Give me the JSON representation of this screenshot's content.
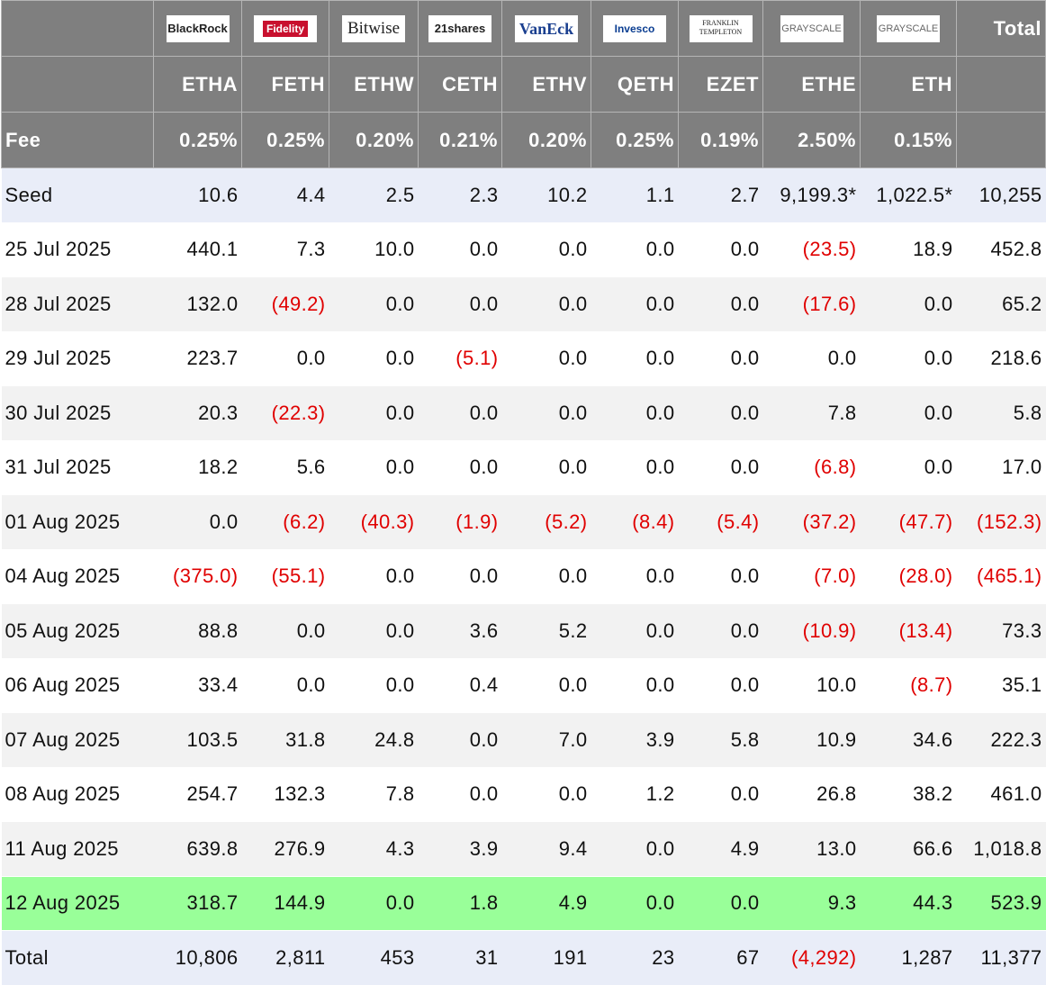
{
  "header": {
    "logos": [
      "BlackRock",
      "Fidelity",
      "Bitwise",
      "21shares",
      "VanEck",
      "Invesco",
      "FRANKLIN TEMPLETON",
      "GRAYSCALE",
      "GRAYSCALE"
    ],
    "total_label": "Total",
    "tickers": [
      "ETHA",
      "FETH",
      "ETHW",
      "CETH",
      "ETHV",
      "QETH",
      "EZET",
      "ETHE",
      "ETH"
    ],
    "fee_label": "Fee",
    "fees": [
      "0.25%",
      "0.25%",
      "0.20%",
      "0.21%",
      "0.20%",
      "0.25%",
      "0.19%",
      "2.50%",
      "0.15%"
    ]
  },
  "table": {
    "rows": [
      [
        "Seed",
        "10.6",
        "4.4",
        "2.5",
        "2.3",
        "10.2",
        "1.1",
        "2.7",
        "9,199.3*",
        "1,022.5*",
        "10,255"
      ],
      [
        "25 Jul 2025",
        "440.1",
        "7.3",
        "10.0",
        "0.0",
        "0.0",
        "0.0",
        "0.0",
        "(23.5)",
        "18.9",
        "452.8"
      ],
      [
        "28 Jul 2025",
        "132.0",
        "(49.2)",
        "0.0",
        "0.0",
        "0.0",
        "0.0",
        "0.0",
        "(17.6)",
        "0.0",
        "65.2"
      ],
      [
        "29 Jul 2025",
        "223.7",
        "0.0",
        "0.0",
        "(5.1)",
        "0.0",
        "0.0",
        "0.0",
        "0.0",
        "0.0",
        "218.6"
      ],
      [
        "30 Jul 2025",
        "20.3",
        "(22.3)",
        "0.0",
        "0.0",
        "0.0",
        "0.0",
        "0.0",
        "7.8",
        "0.0",
        "5.8"
      ],
      [
        "31 Jul 2025",
        "18.2",
        "5.6",
        "0.0",
        "0.0",
        "0.0",
        "0.0",
        "0.0",
        "(6.8)",
        "0.0",
        "17.0"
      ],
      [
        "01 Aug 2025",
        "0.0",
        "(6.2)",
        "(40.3)",
        "(1.9)",
        "(5.2)",
        "(8.4)",
        "(5.4)",
        "(37.2)",
        "(47.7)",
        "(152.3)"
      ],
      [
        "04 Aug 2025",
        "(375.0)",
        "(55.1)",
        "0.0",
        "0.0",
        "0.0",
        "0.0",
        "0.0",
        "(7.0)",
        "(28.0)",
        "(465.1)"
      ],
      [
        "05 Aug 2025",
        "88.8",
        "0.0",
        "0.0",
        "3.6",
        "5.2",
        "0.0",
        "0.0",
        "(10.9)",
        "(13.4)",
        "73.3"
      ],
      [
        "06 Aug 2025",
        "33.4",
        "0.0",
        "0.0",
        "0.4",
        "0.0",
        "0.0",
        "0.0",
        "10.0",
        "(8.7)",
        "35.1"
      ],
      [
        "07 Aug 2025",
        "103.5",
        "31.8",
        "24.8",
        "0.0",
        "7.0",
        "3.9",
        "5.8",
        "10.9",
        "34.6",
        "222.3"
      ],
      [
        "08 Aug 2025",
        "254.7",
        "132.3",
        "7.8",
        "0.0",
        "0.0",
        "1.2",
        "0.0",
        "26.8",
        "38.2",
        "461.0"
      ],
      [
        "11 Aug 2025",
        "639.8",
        "276.9",
        "4.3",
        "3.9",
        "9.4",
        "0.0",
        "4.9",
        "13.0",
        "66.6",
        "1,018.8"
      ],
      [
        "12 Aug 2025",
        "318.7",
        "144.9",
        "0.0",
        "1.8",
        "4.9",
        "0.0",
        "0.0",
        "9.3",
        "44.3",
        "523.9"
      ],
      [
        "Total",
        "10,806",
        "2,811",
        "453",
        "31",
        "191",
        "23",
        "67",
        "(4,292)",
        "1,287",
        "11,377"
      ]
    ]
  }
}
